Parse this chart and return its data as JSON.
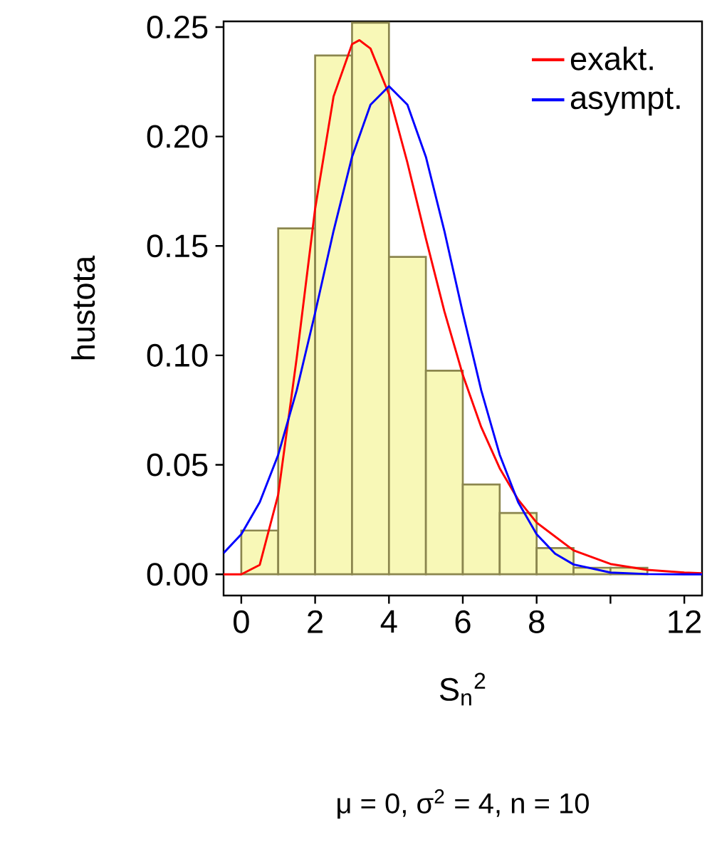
{
  "chart_data": {
    "type": "histogram",
    "xlabel": "S$_{n}$$^{2}$",
    "ylabel": "hustota",
    "annotations": [
      "μ = 0, σ$^{2}$ = 4, n = 10"
    ],
    "xlim": [
      -0.48,
      12.48
    ],
    "ylim": [
      -0.0097,
      0.2526
    ],
    "xticks": [
      0,
      2,
      4,
      6,
      8,
      {
        "value": 10,
        "label": null
      },
      12
    ],
    "yticks": [
      {
        "value": 0,
        "label": "0.00"
      },
      {
        "value": 0.05,
        "label": "0.05"
      },
      {
        "value": 0.1,
        "label": "0.10"
      },
      {
        "value": 0.15,
        "label": "0.15"
      },
      {
        "value": 0.2,
        "label": "0.20"
      },
      {
        "value": 0.25,
        "label": "0.25"
      }
    ],
    "legend": "top right",
    "marker": "none",
    "line_style": "solid",
    "series": [
      {
        "color": "#8b864e",
        "bins": [
          0,
          1,
          2,
          3,
          4,
          5,
          6,
          7,
          8,
          9,
          10,
          11
        ],
        "values": [
          0.02,
          0.158,
          0.237,
          0.252,
          0.145,
          0.093,
          0.041,
          0.028,
          0.012,
          0.003,
          0.003
        ]
      },
      {
        "type": "line",
        "name": "exakt.",
        "color": "#ff0000",
        "x": [
          -0.48,
          0,
          0.5,
          1,
          1.5,
          2,
          2.5,
          3,
          3.2,
          3.5,
          4,
          4.5,
          5,
          5.5,
          6,
          6.5,
          7,
          7.5,
          8,
          9,
          10,
          11,
          12,
          12.48
        ],
        "values": [
          0,
          0,
          0.0043,
          0.0364,
          0.0987,
          0.167,
          0.2183,
          0.2422,
          0.244,
          0.2402,
          0.2193,
          0.188,
          0.1534,
          0.1202,
          0.0911,
          0.0672,
          0.0484,
          0.0341,
          0.0236,
          0.0109,
          0.0047,
          0.002,
          0.0008,
          0.0005
        ]
      },
      {
        "type": "line",
        "name": "asympt.",
        "color": "#0000ff",
        "x": [
          -0.48,
          0,
          0.5,
          1,
          1.5,
          2,
          2.5,
          3,
          3.5,
          4,
          4.5,
          5,
          5.5,
          6,
          6.5,
          7,
          7.5,
          8,
          8.5,
          9,
          10,
          11,
          12,
          12.48
        ],
        "values": [
          0.0097,
          0.0183,
          0.0329,
          0.0546,
          0.084,
          0.1194,
          0.1569,
          0.1907,
          0.2145,
          0.223,
          0.2145,
          0.1907,
          0.1569,
          0.1194,
          0.084,
          0.0546,
          0.0329,
          0.0183,
          0.0094,
          0.0045,
          0.0008,
          0.0001,
          0,
          0
        ]
      }
    ]
  }
}
